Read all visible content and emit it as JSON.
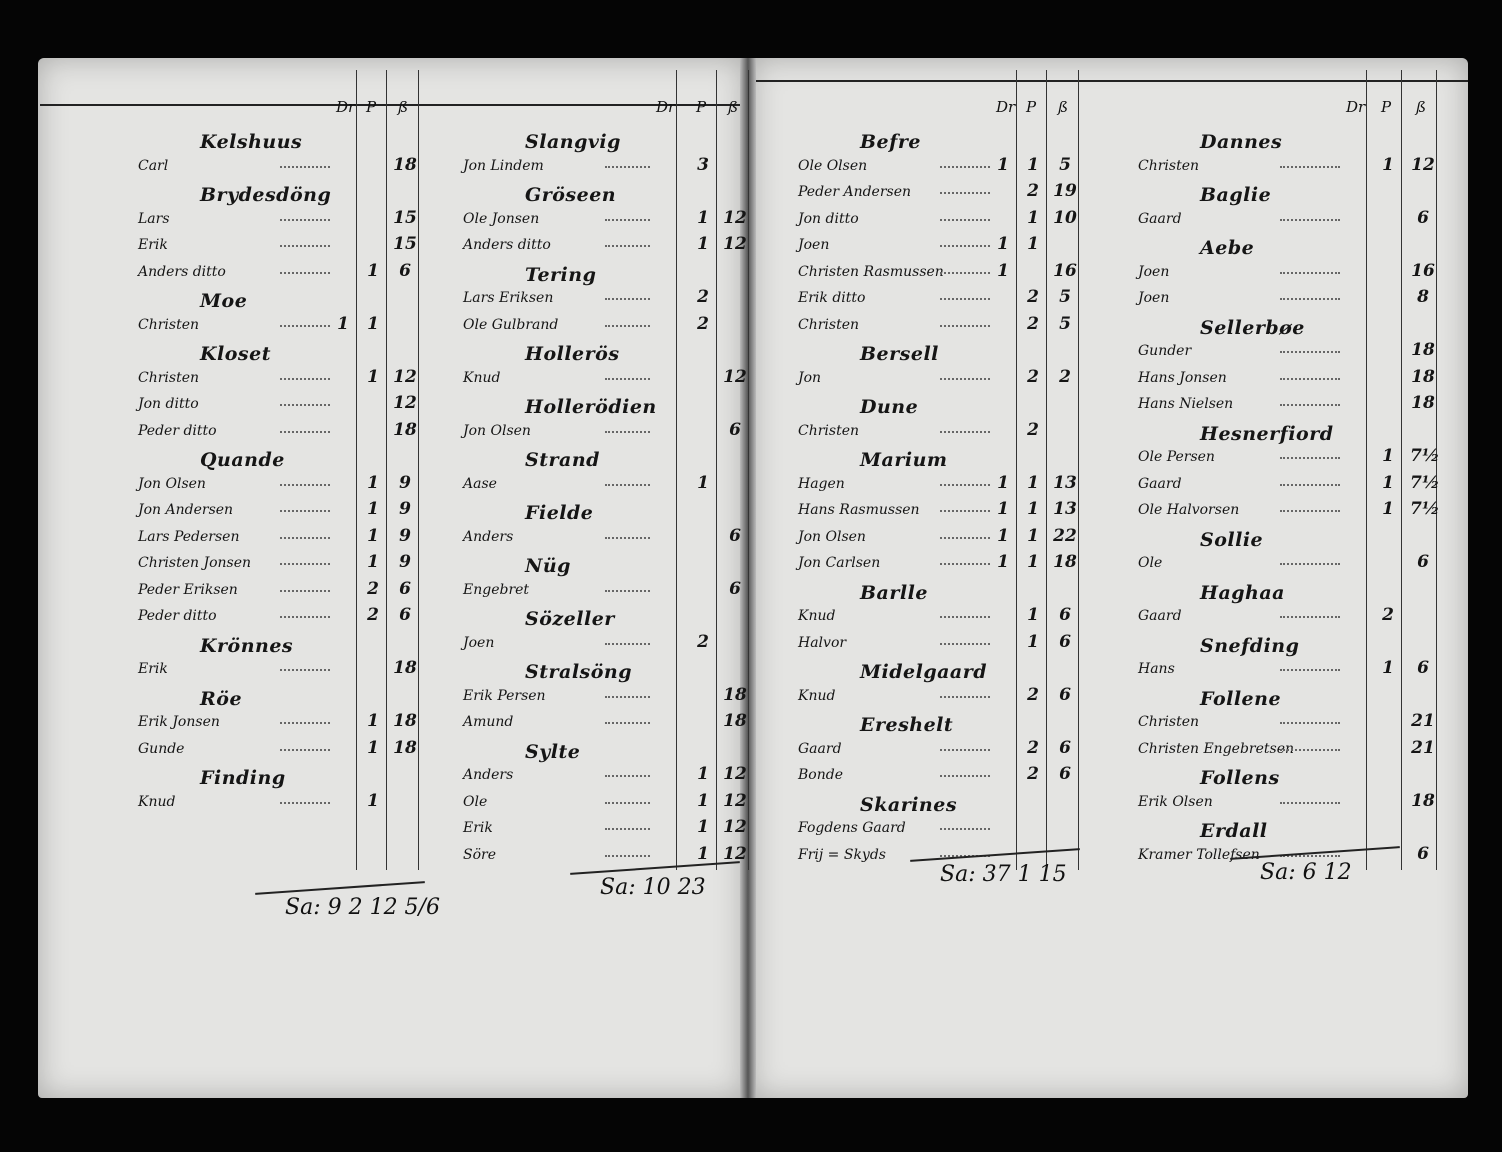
{
  "column_headers": [
    "Dr",
    "P",
    "ß"
  ],
  "columns": [
    {
      "items": [
        {
          "type": "heading",
          "name": "Kelshuus"
        },
        {
          "type": "entry",
          "name": "Carl",
          "values": [
            "",
            "",
            "18"
          ]
        },
        {
          "type": "heading",
          "name": "Brydesdöng"
        },
        {
          "type": "entry",
          "name": "Lars",
          "values": [
            "",
            "",
            "15"
          ]
        },
        {
          "type": "entry",
          "name": "Erik",
          "values": [
            "",
            "",
            "15"
          ]
        },
        {
          "type": "entry",
          "name": "Anders ditto",
          "values": [
            "",
            "1",
            "6"
          ]
        },
        {
          "type": "heading",
          "name": "Moe"
        },
        {
          "type": "entry",
          "name": "Christen",
          "values": [
            "1",
            "1",
            ""
          ]
        },
        {
          "type": "heading",
          "name": "Kloset"
        },
        {
          "type": "entry",
          "name": "Christen",
          "values": [
            "",
            "1",
            "12"
          ]
        },
        {
          "type": "entry",
          "name": "Jon ditto",
          "values": [
            "",
            "",
            "12"
          ]
        },
        {
          "type": "entry",
          "name": "Peder ditto",
          "values": [
            "",
            "",
            "18"
          ]
        },
        {
          "type": "heading",
          "name": "Quande"
        },
        {
          "type": "entry",
          "name": "Jon Olsen",
          "values": [
            "",
            "1",
            "9"
          ]
        },
        {
          "type": "entry",
          "name": "Jon Andersen",
          "values": [
            "",
            "1",
            "9"
          ]
        },
        {
          "type": "entry",
          "name": "Lars Pedersen",
          "values": [
            "",
            "1",
            "9"
          ]
        },
        {
          "type": "entry",
          "name": "Christen Jonsen",
          "values": [
            "",
            "1",
            "9"
          ]
        },
        {
          "type": "entry",
          "name": "Peder Eriksen",
          "values": [
            "",
            "2",
            "6"
          ]
        },
        {
          "type": "entry",
          "name": "Peder ditto",
          "values": [
            "",
            "2",
            "6"
          ]
        },
        {
          "type": "heading",
          "name": "Krönnes"
        },
        {
          "type": "entry",
          "name": "Erik",
          "values": [
            "",
            "",
            "18"
          ]
        },
        {
          "type": "heading",
          "name": "Röe"
        },
        {
          "type": "entry",
          "name": "Erik Jonsen",
          "values": [
            "",
            "1",
            "18"
          ]
        },
        {
          "type": "entry",
          "name": "Gunde",
          "values": [
            "",
            "1",
            "18"
          ]
        },
        {
          "type": "heading",
          "name": "Finding"
        },
        {
          "type": "entry",
          "name": "Knud",
          "values": [
            "",
            "1",
            ""
          ]
        }
      ],
      "total": "Sa: 9 2 12 5/6"
    },
    {
      "items": [
        {
          "type": "heading",
          "name": "Slangvig"
        },
        {
          "type": "entry",
          "name": "Jon Lindem",
          "values": [
            "",
            "3",
            ""
          ]
        },
        {
          "type": "heading",
          "name": "Gröseen"
        },
        {
          "type": "entry",
          "name": "Ole Jonsen",
          "values": [
            "",
            "1",
            "12"
          ]
        },
        {
          "type": "entry",
          "name": "Anders ditto",
          "values": [
            "",
            "1",
            "12"
          ]
        },
        {
          "type": "heading",
          "name": "Tering"
        },
        {
          "type": "entry",
          "name": "Lars Eriksen",
          "values": [
            "",
            "2",
            ""
          ]
        },
        {
          "type": "entry",
          "name": "Ole Gulbrand",
          "values": [
            "",
            "2",
            ""
          ]
        },
        {
          "type": "heading",
          "name": "Hollerös"
        },
        {
          "type": "entry",
          "name": "Knud",
          "values": [
            "",
            "",
            "12"
          ]
        },
        {
          "type": "heading",
          "name": "Hollerödien"
        },
        {
          "type": "entry",
          "name": "Jon Olsen",
          "values": [
            "",
            "",
            "6"
          ]
        },
        {
          "type": "heading",
          "name": "Strand"
        },
        {
          "type": "entry",
          "name": "Aase",
          "values": [
            "",
            "1",
            ""
          ]
        },
        {
          "type": "heading",
          "name": "Fielde"
        },
        {
          "type": "entry",
          "name": "Anders",
          "values": [
            "",
            "",
            "6"
          ]
        },
        {
          "type": "heading",
          "name": "Nüg"
        },
        {
          "type": "entry",
          "name": "Engebret",
          "values": [
            "",
            "",
            "6"
          ]
        },
        {
          "type": "heading",
          "name": "Sözeller"
        },
        {
          "type": "entry",
          "name": "Joen",
          "values": [
            "",
            "2",
            ""
          ]
        },
        {
          "type": "heading",
          "name": "Stralsöng"
        },
        {
          "type": "entry",
          "name": "Erik Persen",
          "values": [
            "",
            "",
            "18"
          ]
        },
        {
          "type": "entry",
          "name": "Amund",
          "values": [
            "",
            "",
            "18"
          ]
        },
        {
          "type": "heading",
          "name": "Sylte"
        },
        {
          "type": "entry",
          "name": "Anders",
          "values": [
            "",
            "1",
            "12"
          ]
        },
        {
          "type": "entry",
          "name": "Ole",
          "values": [
            "",
            "1",
            "12"
          ]
        },
        {
          "type": "entry",
          "name": "Erik",
          "values": [
            "",
            "1",
            "12"
          ]
        },
        {
          "type": "entry",
          "name": "Söre",
          "values": [
            "",
            "1",
            "12"
          ]
        }
      ],
      "total": "Sa: 10 23"
    },
    {
      "items": [
        {
          "type": "heading",
          "name": "Befre"
        },
        {
          "type": "entry",
          "name": "Ole Olsen",
          "values": [
            "1",
            "1",
            "5"
          ]
        },
        {
          "type": "entry",
          "name": "Peder Andersen",
          "values": [
            "",
            "2",
            "19"
          ]
        },
        {
          "type": "entry",
          "name": "Jon ditto",
          "values": [
            "",
            "1",
            "10"
          ]
        },
        {
          "type": "entry",
          "name": "Joen",
          "values": [
            "1",
            "1",
            ""
          ]
        },
        {
          "type": "entry",
          "name": "Christen Rasmussen",
          "values": [
            "1",
            "",
            "16"
          ]
        },
        {
          "type": "entry",
          "name": "Erik ditto",
          "values": [
            "",
            "2",
            "5"
          ]
        },
        {
          "type": "entry",
          "name": "Christen",
          "values": [
            "",
            "2",
            "5"
          ]
        },
        {
          "type": "heading",
          "name": "Bersell"
        },
        {
          "type": "entry",
          "name": "Jon",
          "values": [
            "",
            "2",
            "2"
          ]
        },
        {
          "type": "heading",
          "name": "Dune"
        },
        {
          "type": "entry",
          "name": "Christen",
          "values": [
            "",
            "2",
            ""
          ]
        },
        {
          "type": "heading",
          "name": "Marium"
        },
        {
          "type": "entry",
          "name": "Hagen",
          "values": [
            "1",
            "1",
            "13"
          ]
        },
        {
          "type": "entry",
          "name": "Hans Rasmussen",
          "values": [
            "1",
            "1",
            "13"
          ]
        },
        {
          "type": "entry",
          "name": "Jon Olsen",
          "values": [
            "1",
            "1",
            "22"
          ]
        },
        {
          "type": "entry",
          "name": "Jon Carlsen",
          "values": [
            "1",
            "1",
            "18"
          ]
        },
        {
          "type": "heading",
          "name": "Barlle"
        },
        {
          "type": "entry",
          "name": "Knud",
          "values": [
            "",
            "1",
            "6"
          ]
        },
        {
          "type": "entry",
          "name": "Halvor",
          "values": [
            "",
            "1",
            "6"
          ]
        },
        {
          "type": "heading",
          "name": "Midelgaard"
        },
        {
          "type": "entry",
          "name": "Knud",
          "values": [
            "",
            "2",
            "6"
          ]
        },
        {
          "type": "heading",
          "name": "Ereshelt"
        },
        {
          "type": "entry",
          "name": "Gaard",
          "values": [
            "",
            "2",
            "6"
          ]
        },
        {
          "type": "entry",
          "name": "Bonde",
          "values": [
            "",
            "2",
            "6"
          ]
        },
        {
          "type": "heading",
          "name": "Skarines"
        },
        {
          "type": "entry",
          "name": "Fogdens Gaard",
          "values": [
            "",
            "",
            ""
          ]
        },
        {
          "type": "entry",
          "name": "Frij = Skyds",
          "values": [
            "",
            "",
            ""
          ]
        }
      ],
      "total": "Sa: 37 1 15"
    },
    {
      "items": [
        {
          "type": "heading",
          "name": "Dannes"
        },
        {
          "type": "entry",
          "name": "Christen",
          "values": [
            "",
            "1",
            "12"
          ]
        },
        {
          "type": "heading",
          "name": "Baglie"
        },
        {
          "type": "entry",
          "name": "Gaard",
          "values": [
            "",
            "",
            "6"
          ]
        },
        {
          "type": "heading",
          "name": "Aebe"
        },
        {
          "type": "entry",
          "name": "Joen",
          "values": [
            "",
            "",
            "16"
          ]
        },
        {
          "type": "entry",
          "name": "Joen",
          "values": [
            "",
            "",
            "8"
          ]
        },
        {
          "type": "heading",
          "name": "Sellerbøe"
        },
        {
          "type": "entry",
          "name": "Gunder",
          "values": [
            "",
            "",
            "18"
          ]
        },
        {
          "type": "entry",
          "name": "Hans Jonsen",
          "values": [
            "",
            "",
            "18"
          ]
        },
        {
          "type": "entry",
          "name": "Hans Nielsen",
          "values": [
            "",
            "",
            "18"
          ]
        },
        {
          "type": "heading",
          "name": "Hesnerfiord"
        },
        {
          "type": "entry",
          "name": "Ole Persen",
          "values": [
            "",
            "1",
            "7½"
          ]
        },
        {
          "type": "entry",
          "name": "Gaard",
          "values": [
            "",
            "1",
            "7½"
          ]
        },
        {
          "type": "entry",
          "name": "Ole Halvorsen",
          "values": [
            "",
            "1",
            "7½"
          ]
        },
        {
          "type": "heading",
          "name": "Sollie"
        },
        {
          "type": "entry",
          "name": "Ole",
          "values": [
            "",
            "",
            "6"
          ]
        },
        {
          "type": "heading",
          "name": "Haghaa"
        },
        {
          "type": "entry",
          "name": "Gaard",
          "values": [
            "",
            "2",
            ""
          ]
        },
        {
          "type": "heading",
          "name": "Snefding"
        },
        {
          "type": "entry",
          "name": "Hans",
          "values": [
            "",
            "1",
            "6"
          ]
        },
        {
          "type": "heading",
          "name": "Follene"
        },
        {
          "type": "entry",
          "name": "Christen",
          "values": [
            "",
            "",
            "21"
          ]
        },
        {
          "type": "entry",
          "name": "Christen Engebretsen",
          "values": [
            "",
            "",
            "21"
          ]
        },
        {
          "type": "heading",
          "name": "Follens"
        },
        {
          "type": "entry",
          "name": "Erik Olsen",
          "values": [
            "",
            "",
            "18"
          ]
        },
        {
          "type": "heading",
          "name": "Erdall"
        },
        {
          "type": "entry",
          "name": "Kramer Tollefsen",
          "values": [
            "",
            "",
            "6"
          ]
        }
      ],
      "total": "Sa: 6 12"
    }
  ]
}
